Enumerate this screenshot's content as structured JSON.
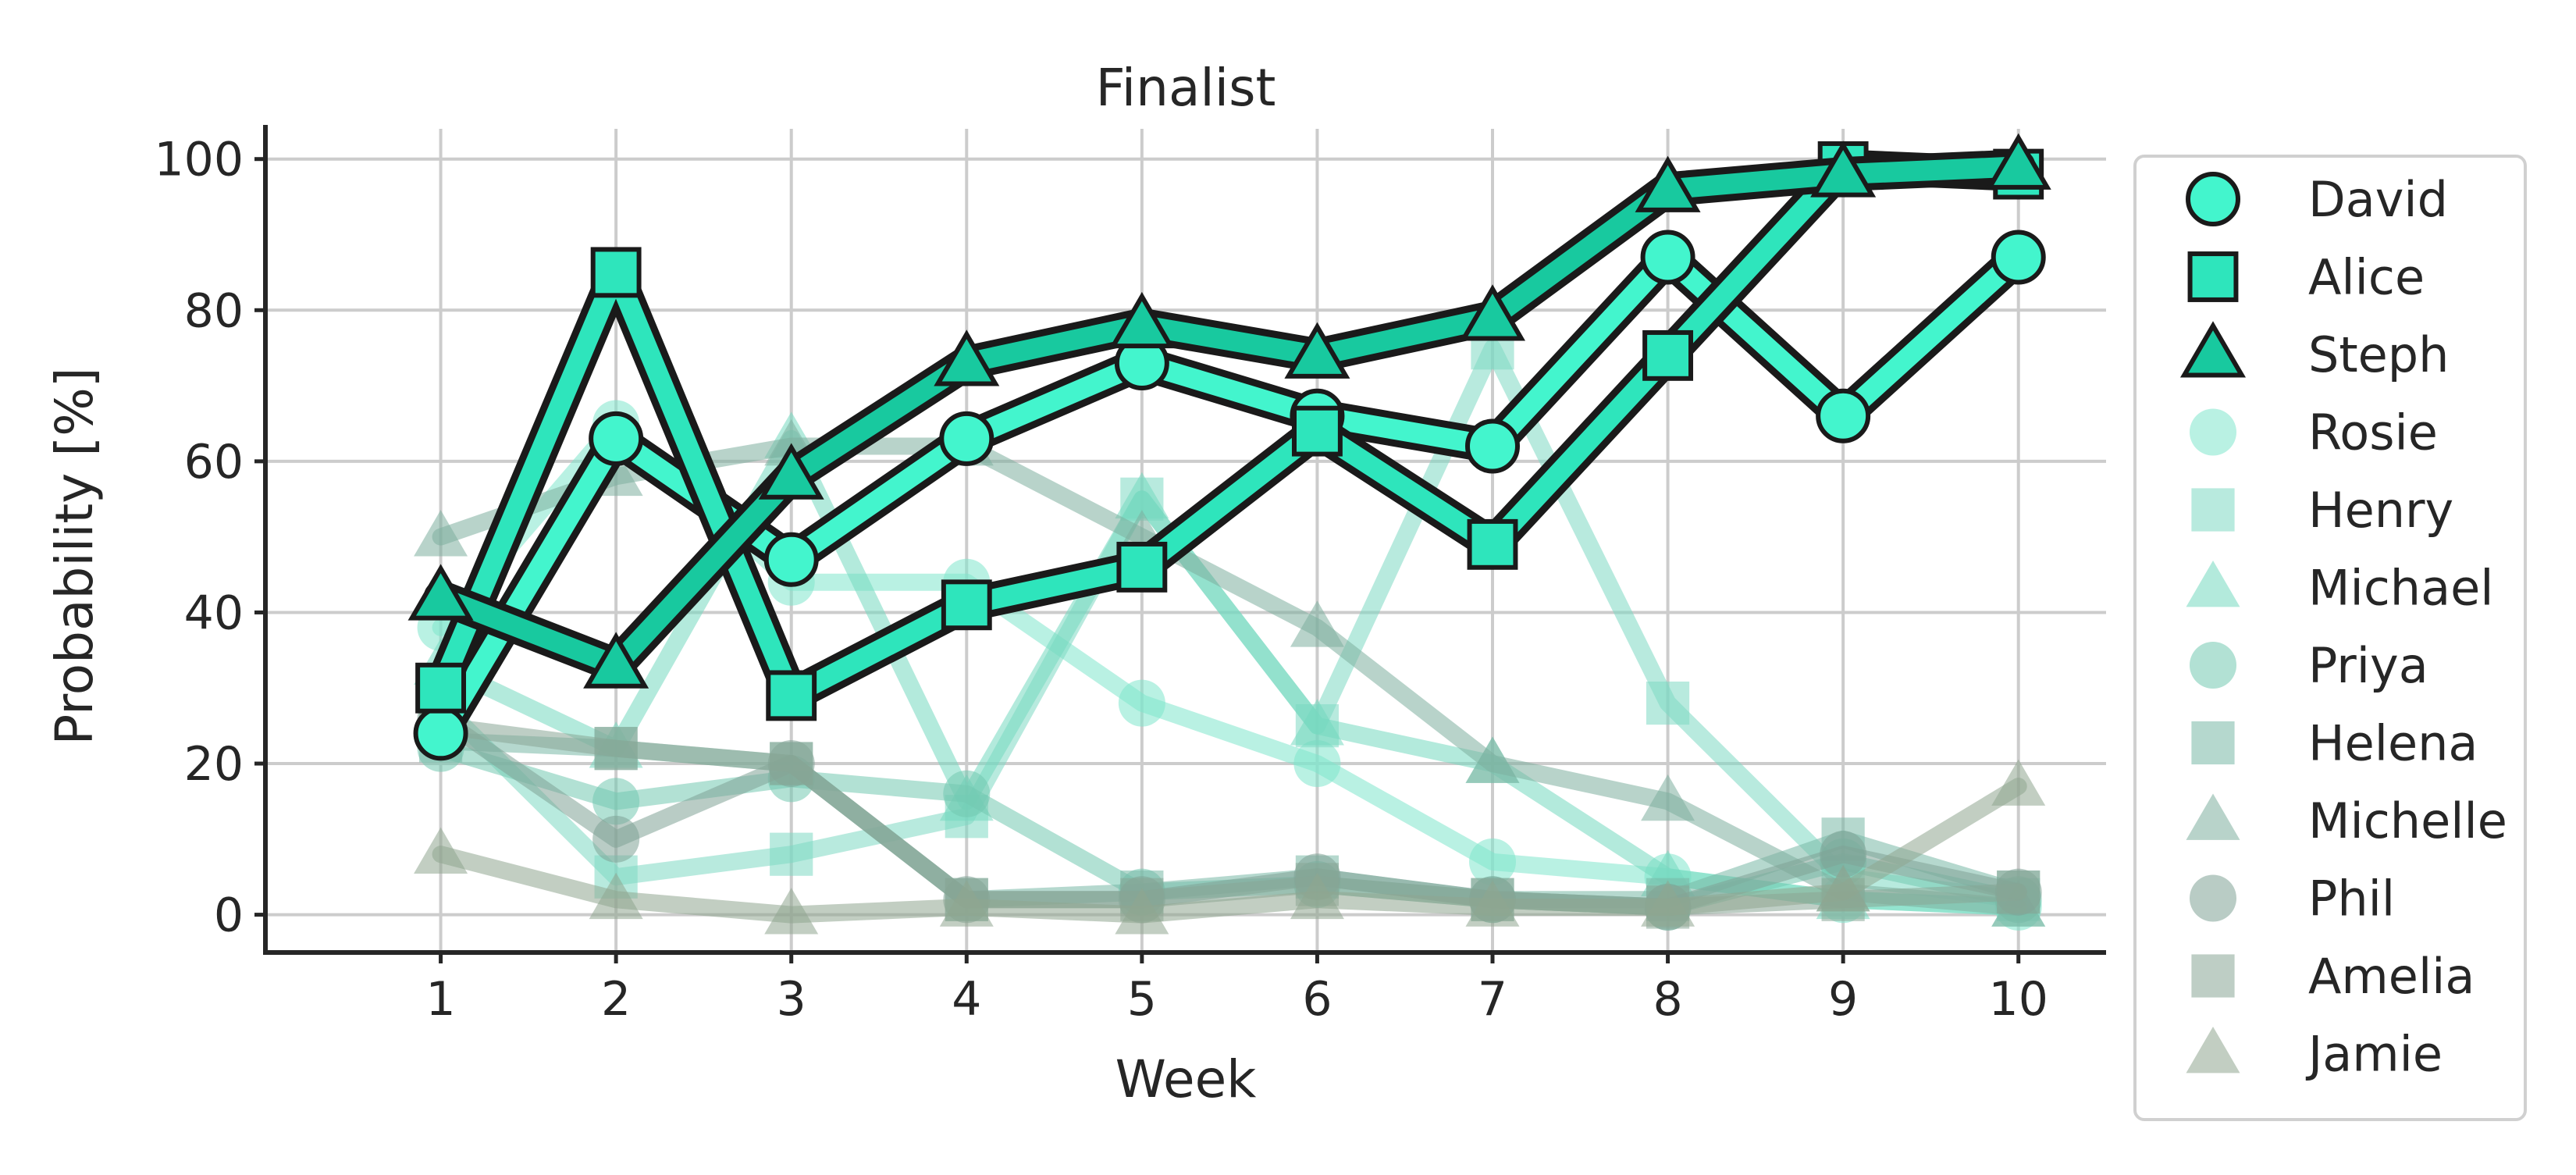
{
  "chart_data": {
    "type": "line",
    "title": "Finalist",
    "xlabel": "Week",
    "ylabel": "Probability [%]",
    "x": [
      1,
      2,
      3,
      4,
      5,
      6,
      7,
      8,
      9,
      10
    ],
    "xticks": [
      "1",
      "2",
      "3",
      "4",
      "5",
      "6",
      "7",
      "8",
      "9",
      "10"
    ],
    "yticks": [
      "0",
      "20",
      "40",
      "60",
      "80",
      "100"
    ],
    "xlim": [
      0,
      10.5
    ],
    "ylim": [
      -5,
      104
    ],
    "grid": true,
    "legend_position": "outside-right",
    "series": [
      {
        "name": "David",
        "marker": "circle",
        "highlight": true,
        "color": "#43f5cd",
        "values": [
          24,
          63,
          47,
          63,
          73,
          66,
          62,
          87,
          66,
          87
        ]
      },
      {
        "name": "Alice",
        "marker": "square",
        "highlight": true,
        "color": "#2ee5bc",
        "values": [
          30,
          85,
          29,
          41,
          46,
          64,
          49,
          74,
          99,
          98
        ]
      },
      {
        "name": "Steph",
        "marker": "triangle",
        "highlight": true,
        "color": "#18c99f",
        "values": [
          42,
          33,
          58,
          73,
          78,
          74,
          79,
          96,
          98,
          99
        ]
      },
      {
        "name": "Rosie",
        "marker": "circle",
        "highlight": false,
        "color": "#7fe6cc",
        "values": [
          38,
          65,
          44,
          44,
          28,
          20,
          7,
          5,
          2,
          1
        ]
      },
      {
        "name": "Henry",
        "marker": "square",
        "highlight": false,
        "color": "#7ed8c2",
        "values": [
          28,
          5,
          8,
          13,
          55,
          25,
          75,
          28,
          5,
          2
        ]
      },
      {
        "name": "Michael",
        "marker": "triangle",
        "highlight": false,
        "color": "#74d9c0",
        "values": [
          33,
          22,
          63,
          15,
          55,
          25,
          20,
          5,
          2,
          1
        ]
      },
      {
        "name": "Priya",
        "marker": "circle",
        "highlight": false,
        "color": "#72c8b0",
        "values": [
          22,
          15,
          18,
          16,
          3,
          4,
          2,
          1,
          7,
          2
        ]
      },
      {
        "name": "Helena",
        "marker": "square",
        "highlight": false,
        "color": "#78b8a6",
        "values": [
          23,
          22,
          20,
          2,
          3,
          5,
          2,
          2,
          10,
          3
        ]
      },
      {
        "name": "Michelle",
        "marker": "triangle",
        "highlight": false,
        "color": "#7eae9f",
        "values": [
          50,
          58,
          62,
          62,
          50,
          38,
          20,
          15,
          3,
          1
        ]
      },
      {
        "name": "Phil",
        "marker": "circle",
        "highlight": false,
        "color": "#7fa296",
        "values": [
          26,
          10,
          20,
          2,
          2,
          5,
          2,
          1,
          8,
          3
        ]
      },
      {
        "name": "Amelia",
        "marker": "square",
        "highlight": false,
        "color": "#88a696",
        "values": [
          25,
          22,
          20,
          2,
          2,
          4,
          2,
          1,
          2,
          3
        ]
      },
      {
        "name": "Jamie",
        "marker": "triangle",
        "highlight": false,
        "color": "#8fa58f",
        "values": [
          8,
          2,
          0,
          1,
          0,
          2,
          1,
          1,
          3,
          17
        ]
      }
    ]
  }
}
